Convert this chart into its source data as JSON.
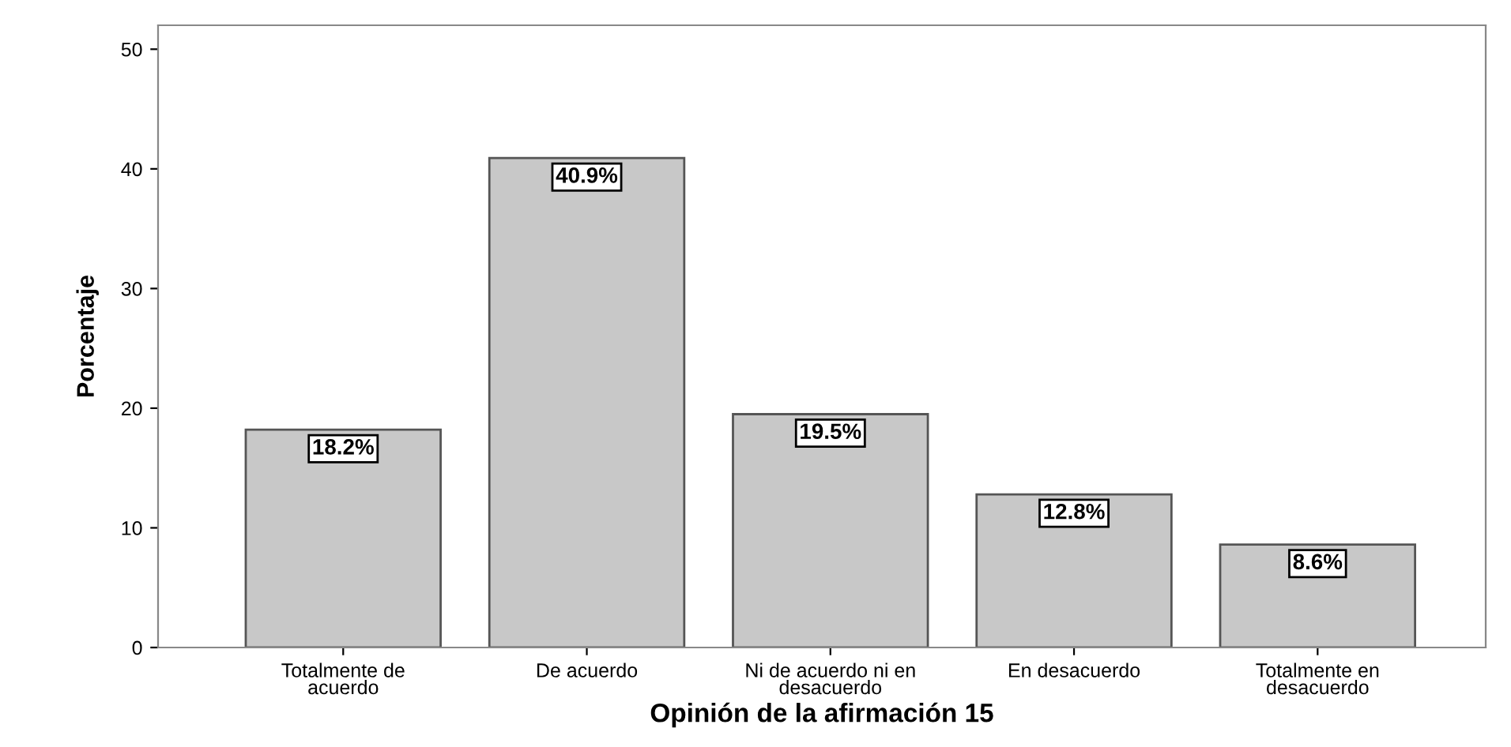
{
  "chart_data": {
    "type": "bar",
    "xlabel": "Opinión de la afirmación 15",
    "ylabel": "Porcentaje",
    "categories": [
      "Totalmente de\nacuerdo",
      "De acuerdo",
      "Ni de acuerdo ni en\ndesacuerdo",
      "En desacuerdo",
      "Totalmente en\ndesacuerdo"
    ],
    "values": [
      18.2,
      40.9,
      19.5,
      12.8,
      8.6
    ],
    "value_labels": [
      "18.2%",
      "40.9%",
      "19.5%",
      "12.8%",
      "8.6%"
    ],
    "color": "#c8c8c8",
    "ylim": [
      0,
      52
    ],
    "yticks": [
      0,
      10,
      20,
      30,
      40,
      50
    ],
    "grid": false
  }
}
